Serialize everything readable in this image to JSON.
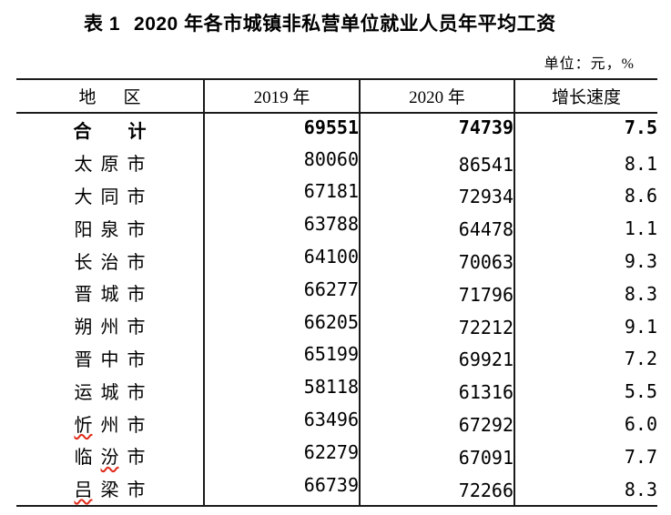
{
  "title": {
    "prefix": "表 1",
    "text": "2020 年各市城镇非私营单位就业人员年平均工资"
  },
  "unit_note": "单位：元，%",
  "colors": {
    "text": "#000000",
    "rule": "#1a1a1a",
    "spellcheck_underline": "#e02a1a"
  },
  "table": {
    "columns": [
      {
        "label": "地区",
        "chars": [
          "地",
          "区"
        ]
      },
      {
        "label": "2019 年"
      },
      {
        "label": "2020 年"
      },
      {
        "label": "增长速度"
      }
    ],
    "rows": [
      {
        "region": "合计",
        "chars": [
          "合",
          "计"
        ],
        "wavy": [],
        "total": true,
        "v2019": "69551",
        "v2020": "74739",
        "growth": "7.5"
      },
      {
        "region": "太原市",
        "chars": [
          "太",
          "原",
          "市"
        ],
        "wavy": [],
        "total": false,
        "v2019": "80060",
        "v2020": "86541",
        "growth": "8.1"
      },
      {
        "region": "大同市",
        "chars": [
          "大",
          "同",
          "市"
        ],
        "wavy": [],
        "total": false,
        "v2019": "67181",
        "v2020": "72934",
        "growth": "8.6"
      },
      {
        "region": "阳泉市",
        "chars": [
          "阳",
          "泉",
          "市"
        ],
        "wavy": [],
        "total": false,
        "v2019": "63788",
        "v2020": "64478",
        "growth": "1.1"
      },
      {
        "region": "长治市",
        "chars": [
          "长",
          "治",
          "市"
        ],
        "wavy": [],
        "total": false,
        "v2019": "64100",
        "v2020": "70063",
        "growth": "9.3"
      },
      {
        "region": "晋城市",
        "chars": [
          "晋",
          "城",
          "市"
        ],
        "wavy": [],
        "total": false,
        "v2019": "66277",
        "v2020": "71796",
        "growth": "8.3"
      },
      {
        "region": "朔州市",
        "chars": [
          "朔",
          "州",
          "市"
        ],
        "wavy": [],
        "total": false,
        "v2019": "66205",
        "v2020": "72212",
        "growth": "9.1"
      },
      {
        "region": "晋中市",
        "chars": [
          "晋",
          "中",
          "市"
        ],
        "wavy": [],
        "total": false,
        "v2019": "65199",
        "v2020": "69921",
        "growth": "7.2"
      },
      {
        "region": "运城市",
        "chars": [
          "运",
          "城",
          "市"
        ],
        "wavy": [],
        "total": false,
        "v2019": "58118",
        "v2020": "61316",
        "growth": "5.5"
      },
      {
        "region": "忻州市",
        "chars": [
          "忻",
          "州",
          "市"
        ],
        "wavy": [
          0
        ],
        "total": false,
        "v2019": "63496",
        "v2020": "67292",
        "growth": "6.0"
      },
      {
        "region": "临汾市",
        "chars": [
          "临",
          "汾",
          "市"
        ],
        "wavy": [
          1
        ],
        "total": false,
        "v2019": "62279",
        "v2020": "67091",
        "growth": "7.7"
      },
      {
        "region": "吕梁市",
        "chars": [
          "吕",
          "梁",
          "市"
        ],
        "wavy": [
          0
        ],
        "total": false,
        "v2019": "66739",
        "v2020": "72266",
        "growth": "8.3"
      }
    ]
  }
}
